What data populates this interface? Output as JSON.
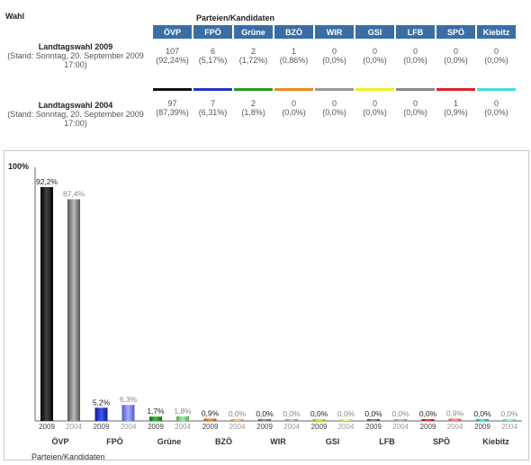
{
  "header": {
    "wahl": "Wahl",
    "parteien": "Parteien/Kandidaten"
  },
  "parties": [
    "ÖVP",
    "FPÖ",
    "Grüne",
    "BZÖ",
    "WIR",
    "GSI",
    "LFB",
    "SPÖ",
    "Kiebitz"
  ],
  "party_colors": [
    "#111111",
    "#2233cc",
    "#229922",
    "#ee8822",
    "#999999",
    "#eeee22",
    "#888888",
    "#dd2222",
    "#44dddd"
  ],
  "elections": [
    {
      "name": "Landtagswahl 2009",
      "stand": "(Stand: Sonntag, 20. September 2009 17:00)",
      "votes": [
        "107",
        "6",
        "2",
        "1",
        "0",
        "0",
        "0",
        "0",
        "0"
      ],
      "percents": [
        "(92,24%)",
        "(5,17%)",
        "(1,72%)",
        "(0,86%)",
        "(0,0%)",
        "(0,0%)",
        "(0,0%)",
        "(0,0%)",
        "(0,0%)"
      ]
    },
    {
      "name": "Landtagswahl 2004",
      "stand": "(Stand: Sonntag, 20. September 2009 17:00)",
      "votes": [
        "97",
        "7",
        "2",
        "0",
        "0",
        "0",
        "0",
        "1",
        "0"
      ],
      "percents": [
        "(87,39%)",
        "(6,31%)",
        "(1,8%)",
        "(0,0%)",
        "(0,0%)",
        "(0,0%)",
        "(0,0%)",
        "(0,9%)",
        "(0,0%)"
      ]
    }
  ],
  "chart_data": {
    "type": "bar",
    "categories": [
      "ÖVP",
      "FPÖ",
      "Grüne",
      "BZÖ",
      "WIR",
      "GSI",
      "LFB",
      "SPÖ",
      "Kiebitz"
    ],
    "series": [
      {
        "name": "2009",
        "values": [
          92.2,
          5.2,
          1.7,
          0.9,
          0.0,
          0.0,
          0.0,
          0.0,
          0.0
        ],
        "labels": [
          "92,2%",
          "5,2%",
          "1,7%",
          "0,9%",
          "0,0%",
          "0,0%",
          "0,0%",
          "0,0%",
          "0,0%"
        ]
      },
      {
        "name": "2004",
        "values": [
          87.4,
          6.3,
          1.8,
          0.0,
          0.0,
          0.0,
          0.0,
          0.9,
          0.0
        ],
        "labels": [
          "87,4%",
          "6,3%",
          "1,8%",
          "0,0%",
          "0,0%",
          "0,0%",
          "0,0%",
          "0,9%",
          "0,0%"
        ]
      }
    ],
    "ylim": [
      0,
      100
    ],
    "y_top_label": "100%",
    "xlabel": "Parteien/Kandidaten"
  }
}
